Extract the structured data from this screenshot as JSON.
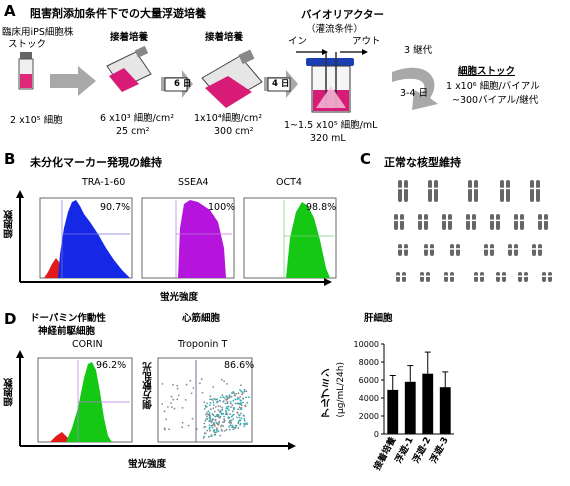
{
  "panelA": {
    "letter": "A",
    "title": "阻害剤添加条件下での大量浮遊培養",
    "stock_line1": "臨床用iPS細胞株",
    "stock_line2": "ストック",
    "stock_count": "2 x10⁵ 細胞",
    "adh1_title": "接着培養",
    "adh1_density": "6 x10³ 細胞/cm²",
    "adh1_area": "25 cm²",
    "day6": "6 日",
    "adh2_title": "接着培養",
    "adh2_density": "1x10⁴細胞/cm²",
    "adh2_area": "300 cm²",
    "day4": "4 日",
    "bio_title": "バイオリアクター",
    "bio_sub": "（灌流条件）",
    "bio_in": "イン",
    "bio_out": "アウト",
    "bio_density": "1~1.5 x10⁵ 細胞/mL",
    "bio_volume": "320 mL",
    "passage": "3 継代",
    "days34": "3-4 日",
    "cell_stock_title": "細胞ストック",
    "cell_stock_l1": "1 x10⁶ 細胞/バイアル",
    "cell_stock_l2": "~300バイアル/継代"
  },
  "panelB": {
    "letter": "B",
    "title": "未分化マーカー発現の維持",
    "ylabel": "細胞数",
    "xlabel": "蛍光強度",
    "plots": [
      {
        "name": "TRA-1-60",
        "pct": "90.7%",
        "color": "#1428e6"
      },
      {
        "name": "SSEA4",
        "pct": "100%",
        "color": "#b414dc"
      },
      {
        "name": "OCT4",
        "pct": "98.8%",
        "color": "#14c814"
      }
    ]
  },
  "panelC": {
    "letter": "C",
    "title": "正常な核型維持"
  },
  "panelD": {
    "letter": "D",
    "dopa_line1": "ドーパミン作動性",
    "dopa_line2": "神経前駆細胞",
    "corin": "CORIN",
    "corin_pct": "96.2%",
    "cardio_title": "心筋細胞",
    "troponin": "Troponin T",
    "troponin_pct": "86.6%",
    "ylabel": "細胞数",
    "scatter_ylabel": "側方散乱光",
    "xlabel": "蛍光強度",
    "hep_title": "肝細胞",
    "hep_ylabel_l1": "アルブミン",
    "hep_ylabel_l2": "(μg/mL/24h)"
  },
  "chart_data": {
    "type": "bar",
    "categories": [
      "接着培養",
      "浮遊-1",
      "浮遊-2",
      "浮遊-3"
    ],
    "values": [
      4900,
      5800,
      6700,
      5200
    ],
    "errors": [
      1600,
      1800,
      2400,
      1700
    ],
    "ylabel": "アルブミン (μg/mL/24h)",
    "ylim": [
      0,
      10000
    ],
    "yticks": [
      "0",
      "2000",
      "4000",
      "6000",
      "8000",
      "10000"
    ],
    "grid": false,
    "bar_color": "#000000"
  }
}
